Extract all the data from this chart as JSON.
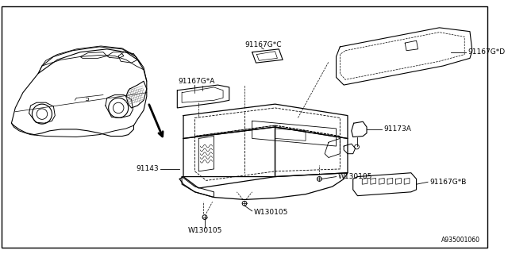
{
  "background_color": "#ffffff",
  "border_color": "#000000",
  "diagram_id": "A935001060",
  "line_color": "#000000",
  "text_color": "#000000",
  "font_size": 6.5,
  "parts": [
    {
      "id": "91143",
      "label": "91143"
    },
    {
      "id": "91167G*A",
      "label": "91167G*A"
    },
    {
      "id": "91167G*B",
      "label": "91167G*B"
    },
    {
      "id": "91167G*C",
      "label": "91167G*C"
    },
    {
      "id": "91167G*D",
      "label": "91167G*D"
    },
    {
      "id": "91173A",
      "label": "91173A"
    },
    {
      "id": "W130105",
      "label": "W130105"
    },
    {
      "id": "W130105",
      "label": "W130105"
    },
    {
      "id": "W130105",
      "label": "W130105"
    }
  ]
}
